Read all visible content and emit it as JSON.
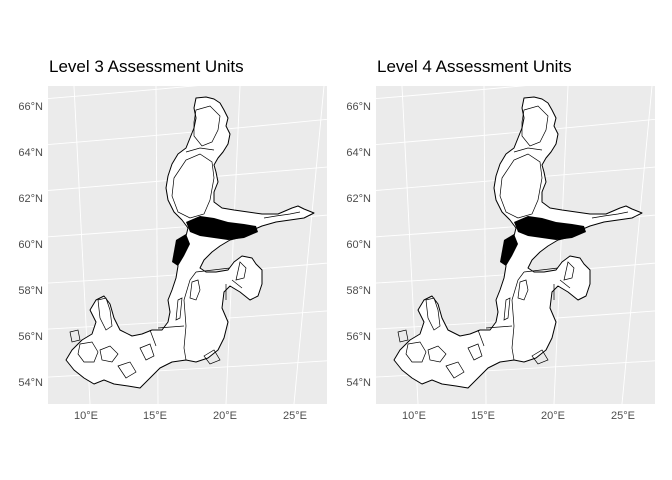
{
  "maps": [
    {
      "title": "Level 3 Assessment Units",
      "lat_labels": [
        "54°N",
        "56°N",
        "58°N",
        "60°N",
        "62°N",
        "64°N",
        "66°N"
      ],
      "lon_labels": [
        "10°E",
        "15°E",
        "20°E",
        "25°E"
      ]
    },
    {
      "title": "Level 4 Assessment Units",
      "lat_labels": [
        "54°N",
        "56°N",
        "58°N",
        "60°N",
        "62°N",
        "64°N",
        "66°N"
      ],
      "lon_labels": [
        "10°E",
        "15°E",
        "20°E",
        "25°E"
      ]
    }
  ],
  "colors": {
    "panel_background": "#ebebeb",
    "grid": "#ffffff",
    "outline": "#000000",
    "tick_text": "#4d4d4d"
  }
}
